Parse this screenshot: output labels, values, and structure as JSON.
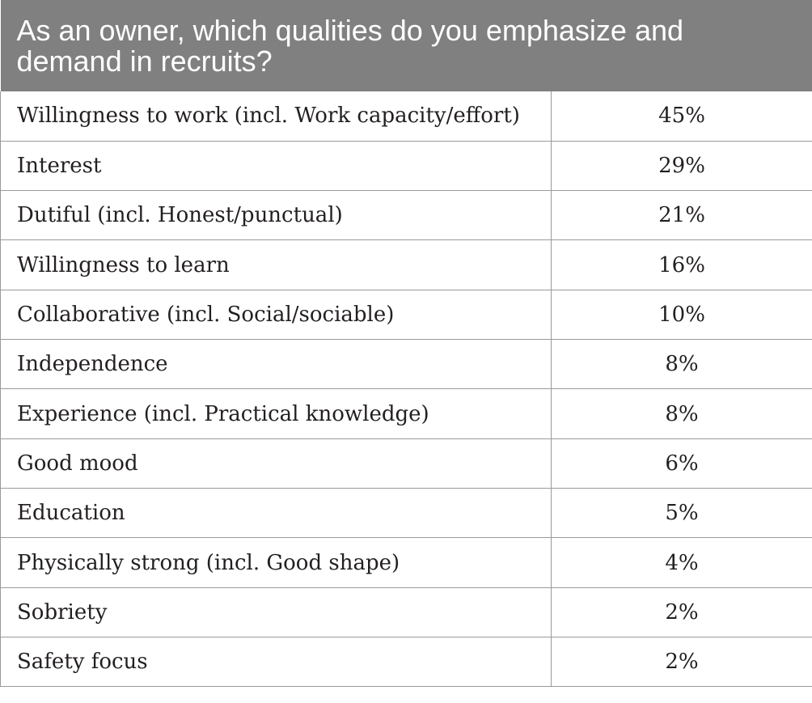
{
  "table": {
    "header": "As an owner, which qualities do you emphasize and demand in recruits?",
    "rows": [
      {
        "quality": "Willingness to work (incl. Work capacity/effort)",
        "percent": "45%"
      },
      {
        "quality": "Interest",
        "percent": "29%"
      },
      {
        "quality": "Dutiful (incl. Honest/punctual)",
        "percent": "21%"
      },
      {
        "quality": "Willingness to learn",
        "percent": "16%"
      },
      {
        "quality": "Collaborative (incl. Social/sociable)",
        "percent": "10%"
      },
      {
        "quality": "Independence",
        "percent": "8%"
      },
      {
        "quality": "Experience (incl. Practical knowledge)",
        "percent": "8%"
      },
      {
        "quality": "Good mood",
        "percent": "6%"
      },
      {
        "quality": "Education",
        "percent": "5%"
      },
      {
        "quality": "Physically strong (incl. Good shape)",
        "percent": "4%"
      },
      {
        "quality": "Sobriety",
        "percent": "2%"
      },
      {
        "quality": "Safety focus",
        "percent": "2%"
      }
    ]
  }
}
